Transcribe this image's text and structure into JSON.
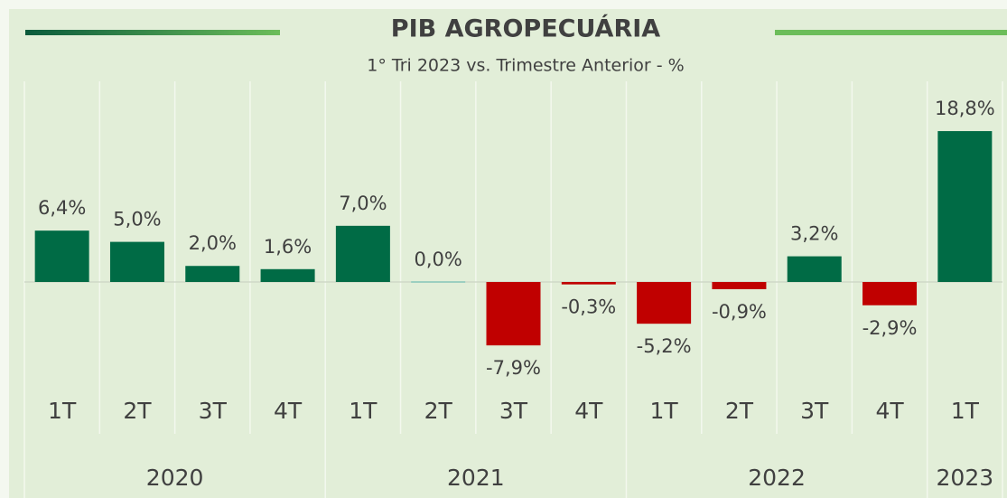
{
  "chart_data": {
    "type": "bar",
    "title": "PIB AGROPECUÁRIA",
    "subtitle": "1° Tri 2023 vs. Trimestre Anterior - %",
    "categories": [
      "1T",
      "2T",
      "3T",
      "4T",
      "1T",
      "2T",
      "3T",
      "4T",
      "1T",
      "2T",
      "3T",
      "4T",
      "1T"
    ],
    "years": [
      "2020",
      "2020",
      "2020",
      "2020",
      "2021",
      "2021",
      "2021",
      "2021",
      "2022",
      "2022",
      "2022",
      "2022",
      "2023"
    ],
    "values": [
      6.4,
      5.0,
      2.0,
      1.6,
      7.0,
      0.0,
      -7.9,
      -0.3,
      -5.2,
      -0.9,
      3.2,
      -2.9,
      18.8
    ],
    "value_labels": [
      "6,4%",
      "5,0%",
      "2,0%",
      "1,6%",
      "7,0%",
      "0,0%",
      "-7,9%",
      "-0,3%",
      "-5,2%",
      "-0,9%",
      "3,2%",
      "-2,9%",
      "18,8%"
    ],
    "color": "#006b45",
    "negative_color": "#c00000",
    "zero_color": "#9ccfc0",
    "ylim": [
      -10,
      20
    ]
  }
}
